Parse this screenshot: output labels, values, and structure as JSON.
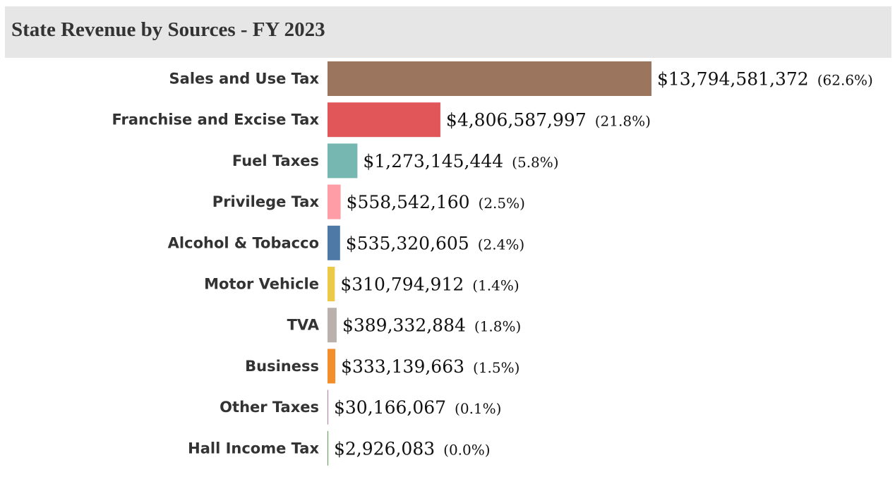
{
  "header": {
    "title": "State Revenue by Sources - FY 2023"
  },
  "chart_data": {
    "type": "bar",
    "orientation": "horizontal",
    "title": "State Revenue by Sources - FY 2023",
    "xlabel": "",
    "ylabel": "",
    "grid": false,
    "legend": "none",
    "categories": [
      "Sales and Use Tax",
      "Franchise and Excise Tax",
      "Fuel Taxes",
      "Privilege Tax",
      "Alcohol & Tobacco",
      "Motor Vehicle",
      "TVA",
      "Business",
      "Other Taxes",
      "Hall Income Tax"
    ],
    "values": [
      13794581372,
      4806587997,
      1273145444,
      558542160,
      535320605,
      310794912,
      389332884,
      333139663,
      30166067,
      2926083
    ],
    "value_labels": [
      "$13,794,581,372",
      "$4,806,587,997",
      "$1,273,145,444",
      "$558,542,160",
      "$535,320,605",
      "$310,794,912",
      "$389,332,884",
      "$333,139,663",
      "$30,166,067",
      "$2,926,083"
    ],
    "percent_labels": [
      "(62.6%)",
      "(21.8%)",
      "(5.8%)",
      "(2.5%)",
      "(2.4%)",
      "(1.4%)",
      "(1.8%)",
      "(1.5%)",
      "(0.1%)",
      "(0.0%)"
    ],
    "colors": [
      "#9c755f",
      "#e15759",
      "#76b7b2",
      "#ff9da7",
      "#4e79a7",
      "#edc948",
      "#bab0ac",
      "#f28e2b",
      "#b07aa1",
      "#59a14f"
    ]
  }
}
